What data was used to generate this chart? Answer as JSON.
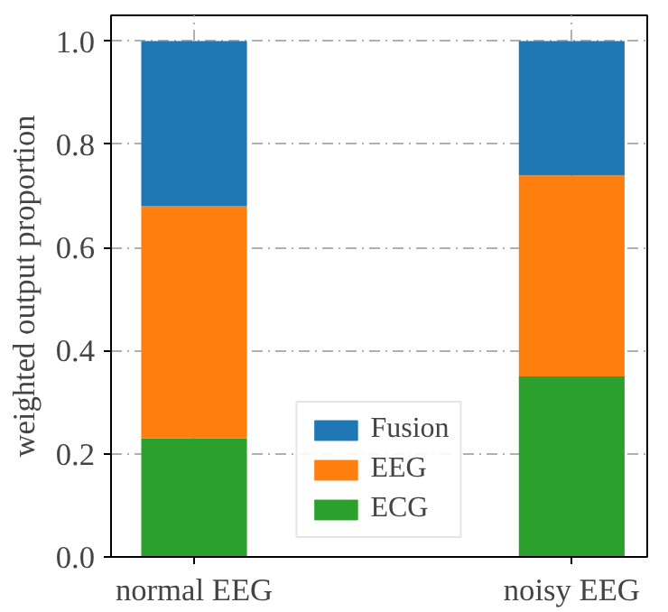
{
  "chart_data": {
    "type": "bar",
    "stacked": true,
    "ylabel": "weighted output proportion",
    "categories": [
      "normal EEG",
      "noisy EEG"
    ],
    "series": [
      {
        "name": "ECG",
        "color": "#2ca02c",
        "values": [
          0.23,
          0.35
        ]
      },
      {
        "name": "EEG",
        "color": "#ff7f0e",
        "values": [
          0.45,
          0.39
        ]
      },
      {
        "name": "Fusion",
        "color": "#1f77b4",
        "values": [
          0.32,
          0.26
        ]
      }
    ],
    "ylim": [
      0,
      1.05
    ],
    "yticks": [
      {
        "value": 0,
        "label": "0.0"
      },
      {
        "value": 0.2,
        "label": "0.2"
      },
      {
        "value": 0.4,
        "label": "0.4"
      },
      {
        "value": 0.6,
        "label": "0.6"
      },
      {
        "value": 0.8,
        "label": "0.8"
      },
      {
        "value": 1,
        "label": "1.0"
      }
    ],
    "grid": true,
    "legend": "bottom"
  }
}
